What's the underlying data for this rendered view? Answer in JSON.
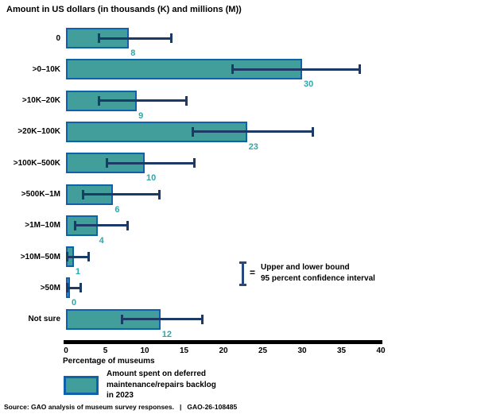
{
  "title": "Amount in US dollars (in thousands (K) and millions (M))",
  "chart_data": {
    "type": "bar",
    "orientation": "horizontal",
    "title": "Amount in US dollars (in thousands (K) and millions (M))",
    "xlabel": "Percentage of museums",
    "xlim": [
      0,
      40
    ],
    "xticks": [
      0,
      5,
      10,
      15,
      20,
      25,
      30,
      35,
      40
    ],
    "grid": false,
    "legend_position": "bottom-left",
    "categories": [
      "0",
      ">0–10K",
      ">10K–20K",
      ">20K–100K",
      ">100K–500K",
      ">500K–1M",
      ">1M–10M",
      ">10M–50M",
      ">50M",
      "Not sure"
    ],
    "values": [
      8,
      30,
      9,
      23,
      10,
      6,
      4,
      1,
      0,
      12
    ],
    "ci_low": [
      4,
      21,
      4,
      16,
      5,
      2,
      1,
      0,
      0,
      7
    ],
    "ci_high": [
      13.5,
      37.5,
      15.5,
      31.5,
      16.5,
      12,
      8,
      3,
      2,
      17.5
    ],
    "series_label": "Amount spent on deferred maintenance/repairs backlog in 2023",
    "error_bar_meaning": "Upper and lower bound 95 percent confidence interval"
  },
  "colors": {
    "bar_fill": "#429e9b",
    "bar_border": "#0e62ac",
    "error_bar": "#1b3a66",
    "value_label": "#2ca8ac",
    "ibeam": "#27497f",
    "axis": "#000000"
  },
  "ci_legend": {
    "equals": "=",
    "lines": [
      "Upper and lower bound",
      "95 percent confidence interval"
    ]
  },
  "legend": {
    "lines": [
      "Amount spent on deferred",
      "maintenance/repairs backlog",
      "in 2023"
    ]
  },
  "footer": {
    "text": "Source: GAO analysis of museum survey responses.",
    "pipe": "|",
    "report": "GAO-26-108485"
  }
}
